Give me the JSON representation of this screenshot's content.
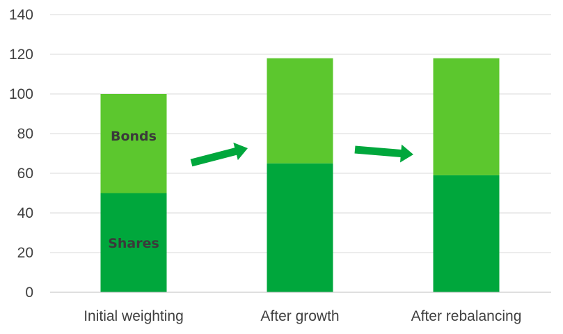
{
  "chart_data": {
    "type": "bar",
    "stacked": true,
    "title": "",
    "xlabel": "",
    "ylabel": "",
    "ylim": [
      0,
      140
    ],
    "yticks": [
      0,
      20,
      40,
      60,
      80,
      100,
      120,
      140
    ],
    "grid": true,
    "legend": "none",
    "categories": [
      "Initial weighting",
      "After growth",
      "After rebalancing"
    ],
    "series": [
      {
        "name": "Shares",
        "values": [
          50,
          65,
          59
        ],
        "color": "#00a73c"
      },
      {
        "name": "Bonds",
        "values": [
          50,
          53,
          59
        ],
        "color": "#5cc72e"
      }
    ],
    "segment_labels": [
      {
        "series": "Shares",
        "category": "Initial weighting",
        "text": "Shares"
      },
      {
        "series": "Bonds",
        "category": "Initial weighting",
        "text": "Bonds"
      }
    ],
    "annotations": [
      {
        "type": "arrow",
        "from": "Initial weighting",
        "to": "After growth",
        "icon": "right-arrow-icon",
        "color": "#00a73c"
      },
      {
        "type": "arrow",
        "from": "After growth",
        "to": "After rebalancing",
        "icon": "right-arrow-icon",
        "color": "#00a73c"
      }
    ]
  }
}
